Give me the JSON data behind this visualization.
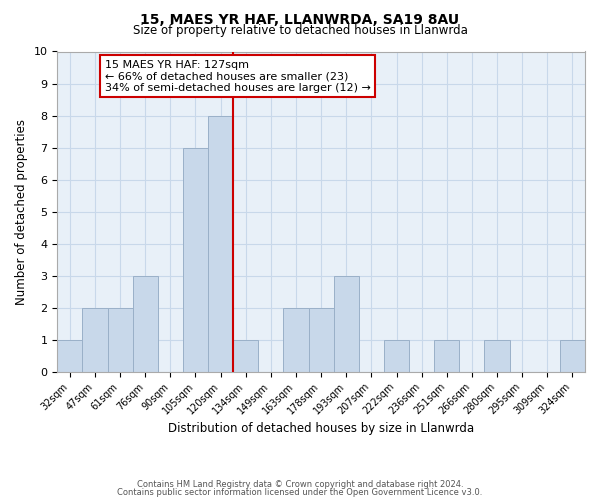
{
  "title": "15, MAES YR HAF, LLANWRDA, SA19 8AU",
  "subtitle": "Size of property relative to detached houses in Llanwrda",
  "xlabel": "Distribution of detached houses by size in Llanwrda",
  "ylabel": "Number of detached properties",
  "bar_labels": [
    "32sqm",
    "47sqm",
    "61sqm",
    "76sqm",
    "90sqm",
    "105sqm",
    "120sqm",
    "134sqm",
    "149sqm",
    "163sqm",
    "178sqm",
    "193sqm",
    "207sqm",
    "222sqm",
    "236sqm",
    "251sqm",
    "266sqm",
    "280sqm",
    "295sqm",
    "309sqm",
    "324sqm"
  ],
  "bar_heights": [
    1,
    2,
    2,
    3,
    0,
    7,
    8,
    1,
    0,
    2,
    2,
    3,
    0,
    1,
    0,
    1,
    0,
    1,
    0,
    0,
    1
  ],
  "bar_color": "#c8d8ea",
  "bar_edge_color": "#9ab0c8",
  "grid_color": "#c8d8ea",
  "background_color": "#e8f0f8",
  "ylim": [
    0,
    10
  ],
  "yticks": [
    0,
    1,
    2,
    3,
    4,
    5,
    6,
    7,
    8,
    9,
    10
  ],
  "red_line_x": 6.5,
  "annotation_text": "15 MAES YR HAF: 127sqm\n← 66% of detached houses are smaller (23)\n34% of semi-detached houses are larger (12) →",
  "annotation_box_color": "#cc0000",
  "red_line_color": "#cc0000",
  "footer_line1": "Contains HM Land Registry data © Crown copyright and database right 2024.",
  "footer_line2": "Contains public sector information licensed under the Open Government Licence v3.0."
}
